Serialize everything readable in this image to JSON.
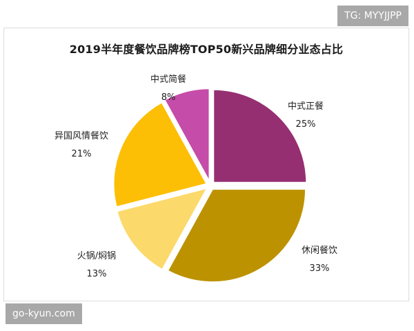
{
  "watermarks": {
    "top": "TG: MYYJJPP",
    "bottom": "go-kyun.com"
  },
  "colors": {
    "中式正餐": "#962f72",
    "休闲餐饮": "#bd9200",
    "火锅/焖锅": "#fbd96b",
    "异国风情餐饮": "#fcbf05",
    "中式简餐": "#c54ca8"
  },
  "chart_data": {
    "type": "pie",
    "title": "2019半年度餐饮品牌榜TOP50新兴品牌细分业态占比",
    "start_angle": "12 o'clock",
    "direction": "clockwise",
    "exploded": true,
    "slices": [
      {
        "label": "中式正餐",
        "value": 25,
        "display": "25%"
      },
      {
        "label": "休闲餐饮",
        "value": 33,
        "display": "33%"
      },
      {
        "label": "火锅/焖锅",
        "value": 13,
        "display": "13%"
      },
      {
        "label": "异国风情餐饮",
        "value": 21,
        "display": "21%"
      },
      {
        "label": "中式简餐",
        "value": 8,
        "display": "8%"
      }
    ]
  }
}
